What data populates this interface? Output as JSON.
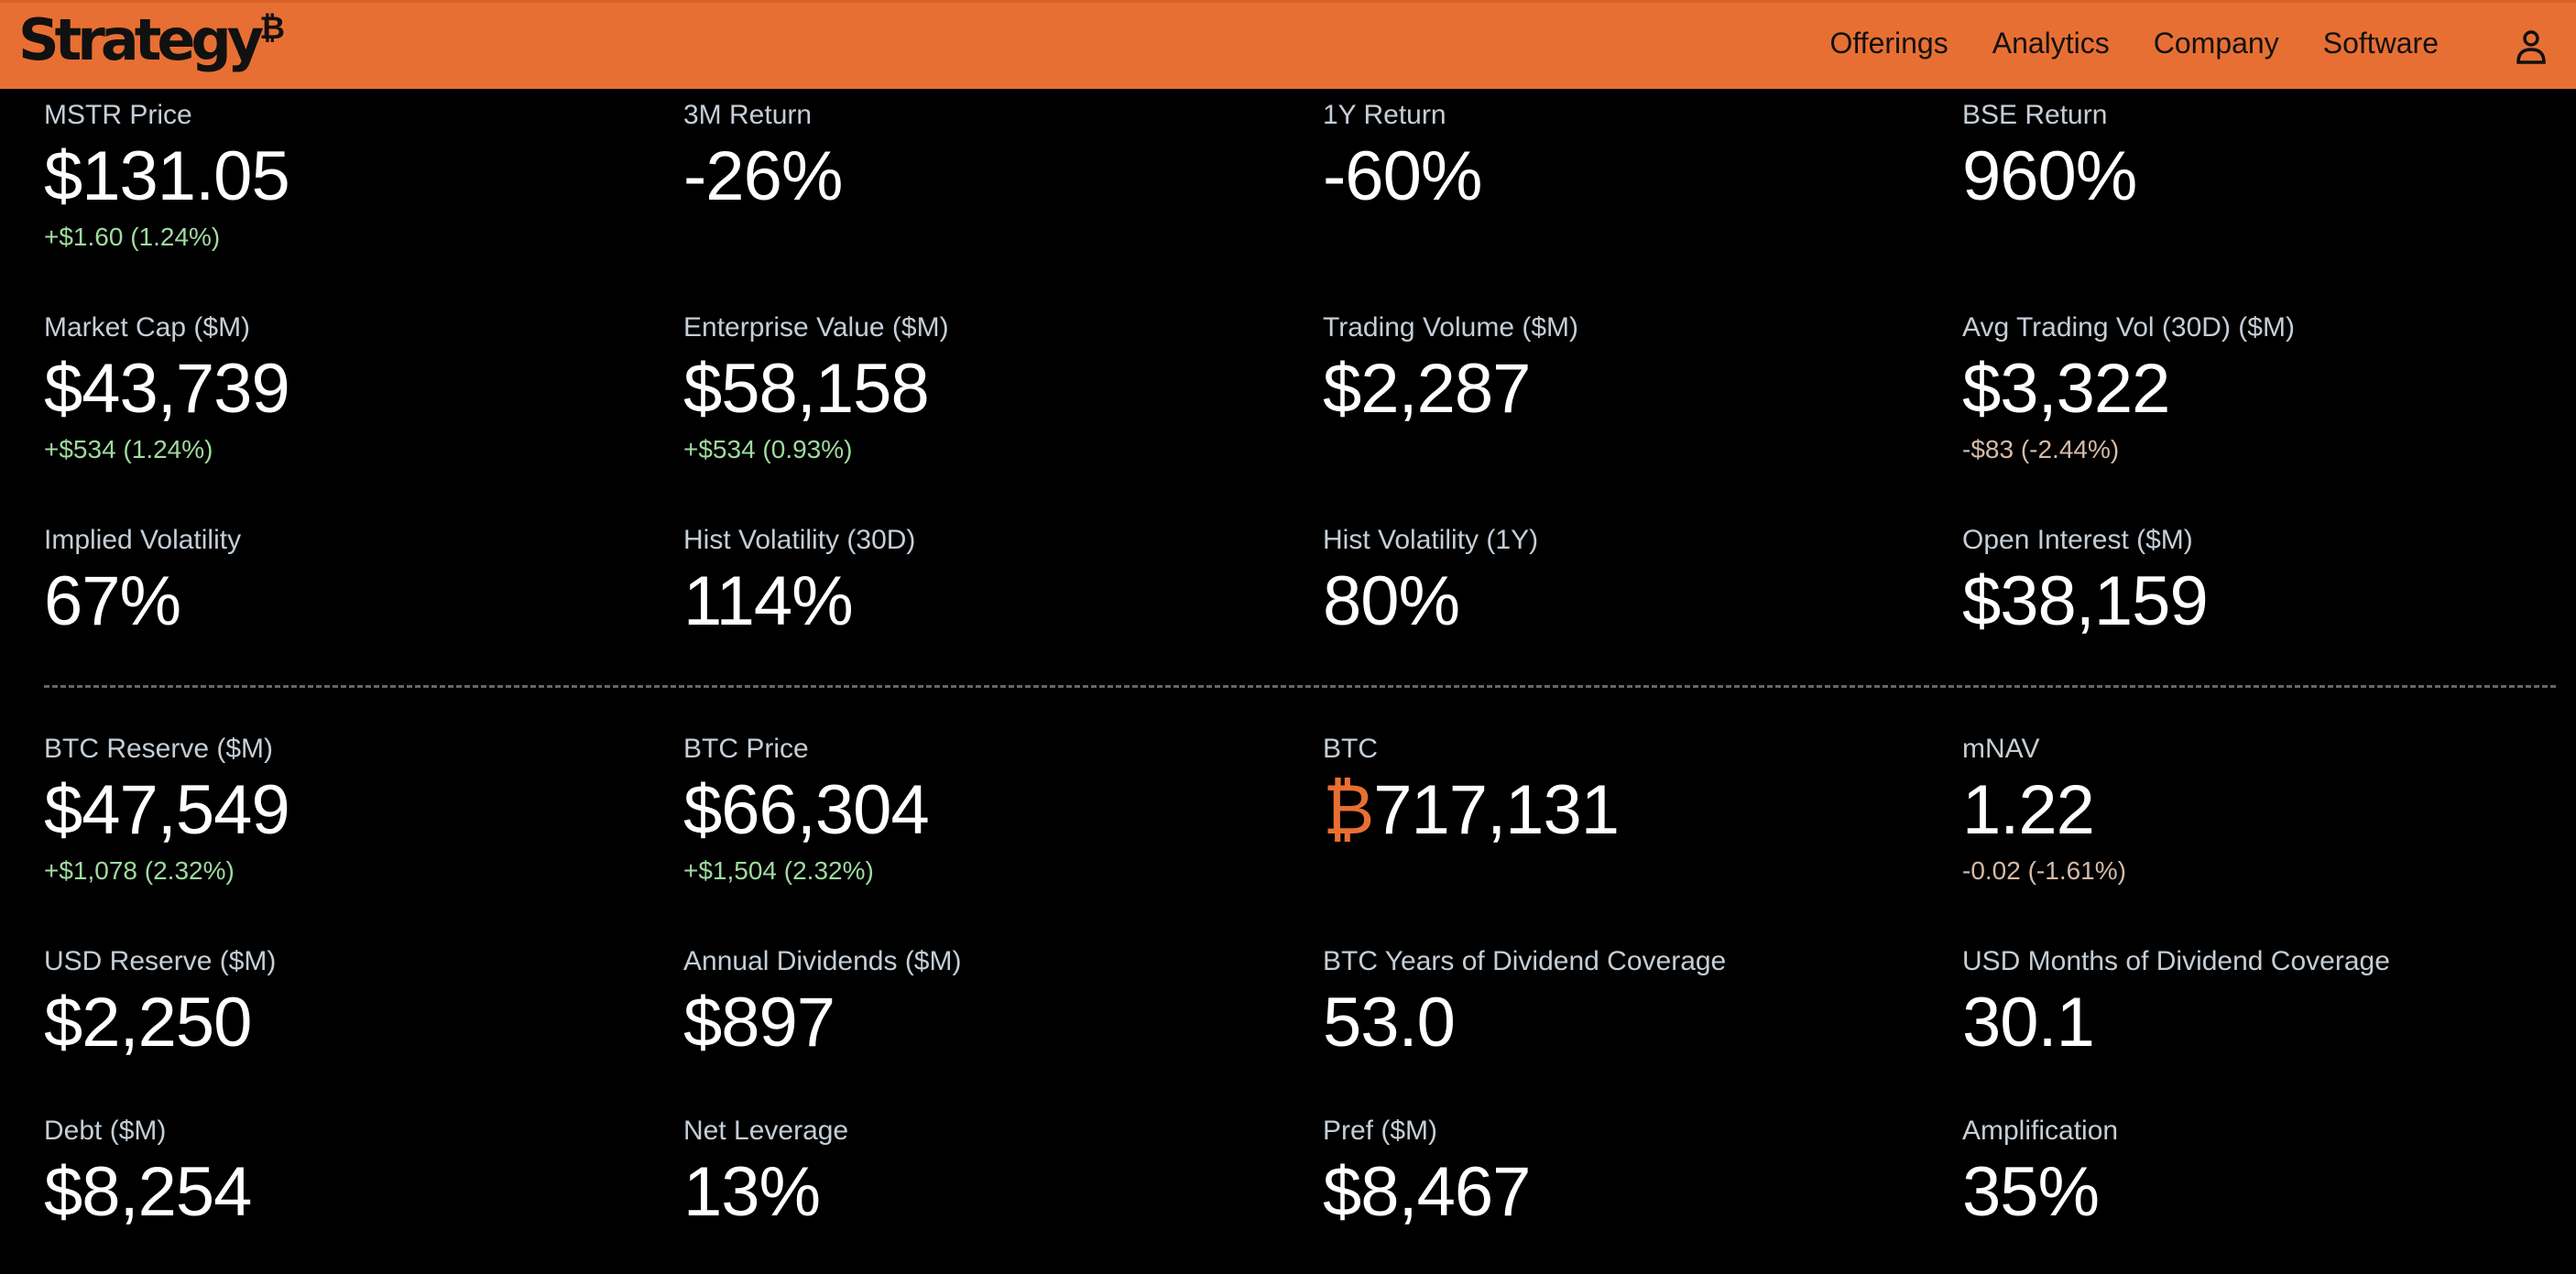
{
  "header": {
    "logo": "Strategy",
    "logo_mark": "₿",
    "nav": [
      "Offerings",
      "Analytics",
      "Company",
      "Software"
    ]
  },
  "colors": {
    "accent": "#e86f33",
    "positive": "#9fdb9f",
    "negative": "#d6bba6"
  },
  "section1": [
    [
      {
        "label": "MSTR Price",
        "value": "$131.05",
        "delta": "+$1.60 (1.24%)",
        "dir": "pos"
      },
      {
        "label": "3M Return",
        "value": "-26%"
      },
      {
        "label": "1Y Return",
        "value": "-60%"
      },
      {
        "label": "BSE Return",
        "value": "960%"
      }
    ],
    [
      {
        "label": "Market Cap ($M)",
        "value": "$43,739",
        "delta": "+$534 (1.24%)",
        "dir": "pos"
      },
      {
        "label": "Enterprise Value ($M)",
        "value": "$58,158",
        "delta": "+$534 (0.93%)",
        "dir": "pos"
      },
      {
        "label": "Trading Volume ($M)",
        "value": "$2,287"
      },
      {
        "label": "Avg Trading Vol (30D) ($M)",
        "value": "$3,322",
        "delta": "-$83 (-2.44%)",
        "dir": "neg"
      }
    ],
    [
      {
        "label": "Implied Volatility",
        "value": "67%"
      },
      {
        "label": "Hist Volatility (30D)",
        "value": "114%"
      },
      {
        "label": "Hist Volatility (1Y)",
        "value": "80%"
      },
      {
        "label": "Open Interest ($M)",
        "value": "$38,159"
      }
    ]
  ],
  "section2": [
    [
      {
        "label": "BTC Reserve ($M)",
        "value": "$47,549",
        "delta": "+$1,078 (2.32%)",
        "dir": "pos"
      },
      {
        "label": "BTC Price",
        "value": "$66,304",
        "delta": "+$1,504 (2.32%)",
        "dir": "pos"
      },
      {
        "label": "BTC",
        "prefix": "₿",
        "value": "717,131"
      },
      {
        "label": "mNAV",
        "value": "1.22",
        "delta": "-0.02 (-1.61%)",
        "dir": "neg"
      }
    ],
    [
      {
        "label": "USD Reserve ($M)",
        "value": "$2,250"
      },
      {
        "label": "Annual Dividends ($M)",
        "value": "$897"
      },
      {
        "label": "BTC Years of Dividend Coverage",
        "value": "53.0"
      },
      {
        "label": "USD Months of Dividend Coverage",
        "value": "30.1"
      }
    ],
    [
      {
        "label": "Debt ($M)",
        "value": "$8,254"
      },
      {
        "label": "Net Leverage",
        "value": "13%"
      },
      {
        "label": "Pref ($M)",
        "value": "$8,467"
      },
      {
        "label": "Amplification",
        "value": "35%"
      }
    ]
  ]
}
